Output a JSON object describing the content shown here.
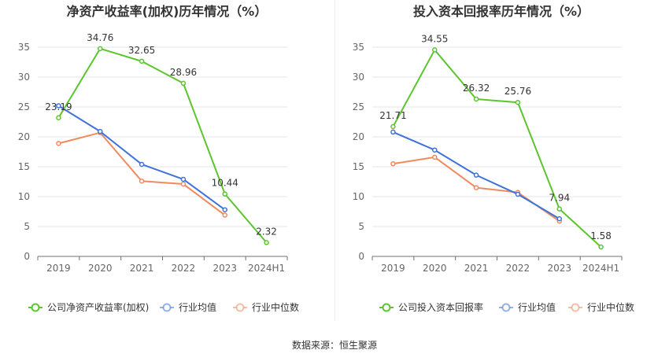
{
  "chart_data": [
    {
      "type": "line",
      "title": "净资产收益率(加权)历年情况（%）",
      "categories": [
        "2019",
        "2020",
        "2021",
        "2022",
        "2023",
        "2024H1"
      ],
      "ylim": [
        0,
        35
      ],
      "yticks": [
        0,
        5,
        10,
        15,
        20,
        25,
        30,
        35
      ],
      "grid": true,
      "legend_position": "bottom",
      "series": [
        {
          "name": "公司净资产收益率(加权)",
          "color": "#5cc52e",
          "values": [
            23.19,
            34.76,
            32.65,
            28.96,
            10.44,
            2.32
          ],
          "labels": [
            "23.19",
            "34.76",
            "32.65",
            "28.96",
            "10.44",
            "2.32"
          ]
        },
        {
          "name": "行业均值",
          "color": "#3f73d9",
          "values": [
            25.2,
            20.9,
            15.4,
            12.9,
            7.8,
            null
          ]
        },
        {
          "name": "行业中位数",
          "color": "#f08a5d",
          "values": [
            18.9,
            20.7,
            12.6,
            12.1,
            6.9,
            null
          ]
        }
      ]
    },
    {
      "type": "line",
      "title": "投入资本回报率历年情况（%）",
      "categories": [
        "2019",
        "2020",
        "2021",
        "2022",
        "2023",
        "2024H1"
      ],
      "ylim": [
        0,
        35
      ],
      "yticks": [
        0,
        5,
        10,
        15,
        20,
        25,
        30,
        35
      ],
      "grid": true,
      "legend_position": "bottom",
      "series": [
        {
          "name": "公司投入资本回报率",
          "color": "#5cc52e",
          "values": [
            21.71,
            34.55,
            26.32,
            25.76,
            7.94,
            1.58
          ],
          "labels": [
            "21.71",
            "34.55",
            "26.32",
            "25.76",
            "7.94",
            "1.58"
          ]
        },
        {
          "name": "行业均值",
          "color": "#3f73d9",
          "values": [
            20.8,
            17.8,
            13.6,
            10.4,
            6.3,
            null
          ]
        },
        {
          "name": "行业中位数",
          "color": "#f08a5d",
          "values": [
            15.5,
            16.6,
            11.5,
            10.7,
            5.9,
            null
          ]
        }
      ]
    }
  ],
  "footer": {
    "source": "数据来源：恒生聚源"
  }
}
